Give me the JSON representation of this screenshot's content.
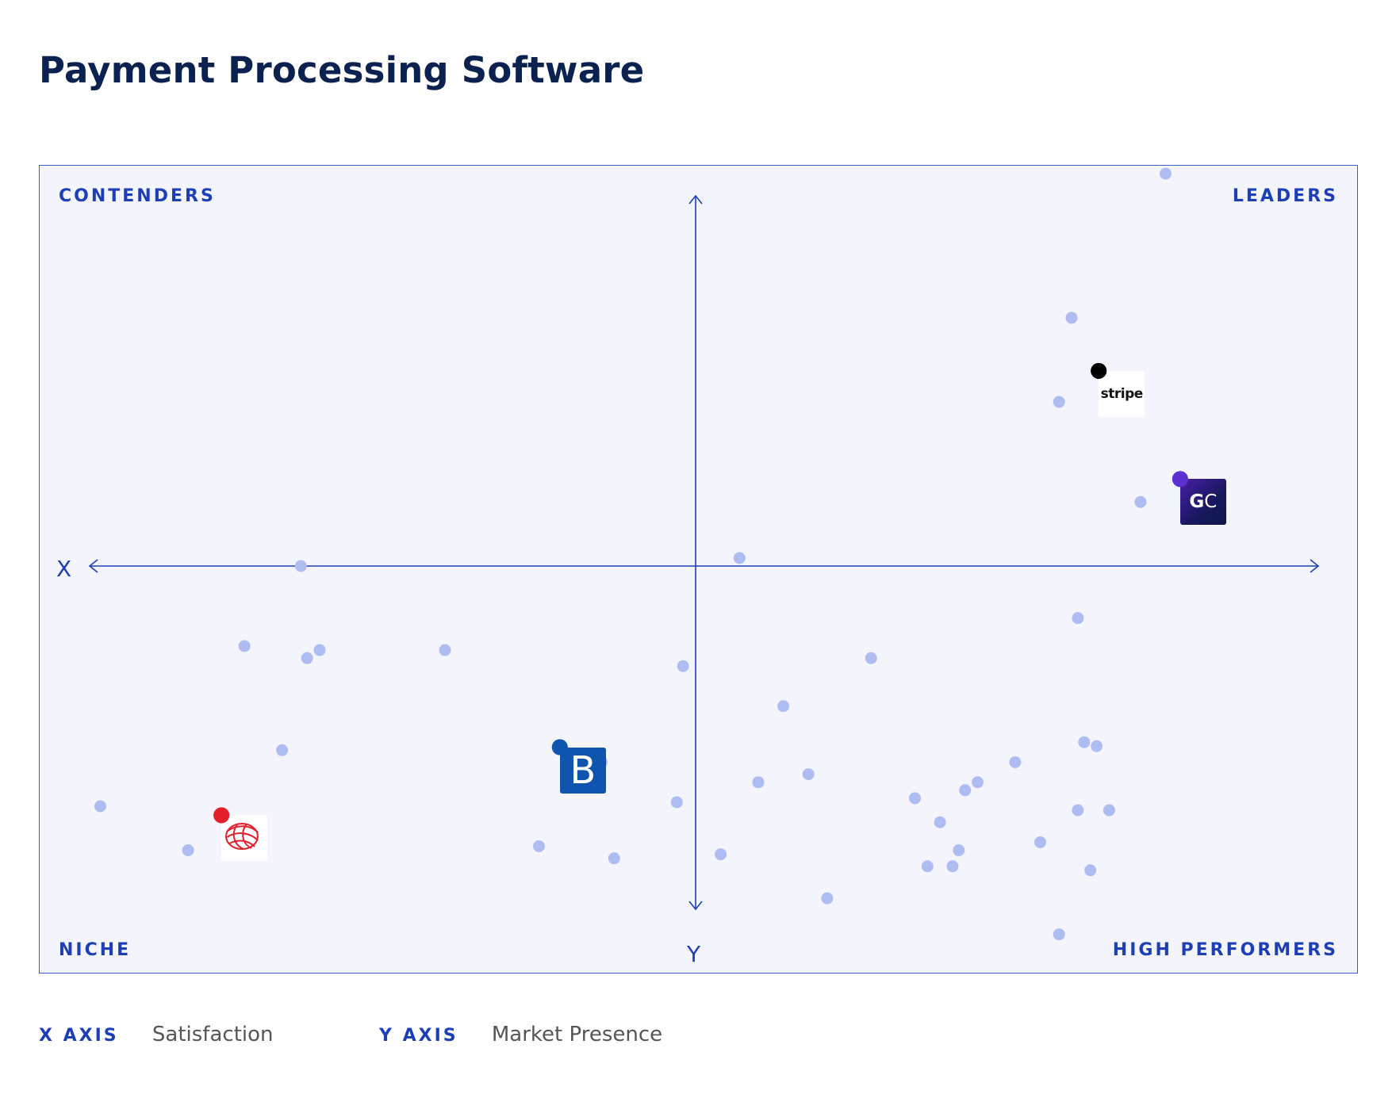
{
  "title": "Payment Processing Software",
  "chart_data": {
    "type": "scatter",
    "quadrants": {
      "top_left": "CONTENDERS",
      "top_right": "LEADERS",
      "bottom_left": "NICHE",
      "bottom_right": "HIGH PERFORMERS"
    },
    "axis_letters": {
      "x": "X",
      "y": "Y"
    },
    "xlim": [
      -100,
      100
    ],
    "ylim": [
      -100,
      100
    ],
    "colors": {
      "dot": "#aebcf2",
      "axis": "#1c3fb7",
      "background": "#f3f4fc"
    },
    "points": [
      [
        75,
        98
      ],
      [
        60,
        62
      ],
      [
        58,
        41
      ],
      [
        71,
        16
      ],
      [
        7,
        2
      ],
      [
        -63,
        0
      ],
      [
        -72,
        -20
      ],
      [
        -62,
        -23
      ],
      [
        -60,
        -21
      ],
      [
        -40,
        -21
      ],
      [
        -2,
        -25
      ],
      [
        28,
        -23
      ],
      [
        14,
        -35
      ],
      [
        61,
        -13
      ],
      [
        -66,
        -46
      ],
      [
        -95,
        -60
      ],
      [
        -81,
        -71
      ],
      [
        -17,
        -47
      ],
      [
        -15,
        -49
      ],
      [
        -3,
        -59
      ],
      [
        -25,
        -70
      ],
      [
        -13,
        -73
      ],
      [
        4,
        -72
      ],
      [
        10,
        -54
      ],
      [
        18,
        -52
      ],
      [
        35,
        -58
      ],
      [
        39,
        -64
      ],
      [
        43,
        -56
      ],
      [
        45,
        -54
      ],
      [
        51,
        -49
      ],
      [
        62,
        -44
      ],
      [
        64,
        -45
      ],
      [
        61,
        -61
      ],
      [
        66,
        -61
      ],
      [
        55,
        -69
      ],
      [
        42,
        -71
      ],
      [
        37,
        -75
      ],
      [
        41,
        -75
      ],
      [
        63,
        -76
      ],
      [
        21,
        -83
      ],
      [
        58,
        -92
      ]
    ],
    "highlighted": [
      {
        "name": "stripe",
        "logo_text": "stripe",
        "x": 68,
        "y": 43,
        "marker_color": "#000000"
      },
      {
        "name": "gocardless",
        "logo_text_bold": "G",
        "logo_text_light": "C",
        "x": 81,
        "y": 16,
        "marker_color": "#5b2fd0"
      },
      {
        "name": "b-product",
        "logo_text": "B",
        "x": -18,
        "y": -51,
        "marker_color": "#0f55b0"
      },
      {
        "name": "globe-product",
        "x": -72,
        "y": -68,
        "marker_color": "#e3202a"
      }
    ]
  },
  "legend": {
    "x_key": "X AXIS",
    "x_value": "Satisfaction",
    "y_key": "Y AXIS",
    "y_value": "Market Presence"
  }
}
